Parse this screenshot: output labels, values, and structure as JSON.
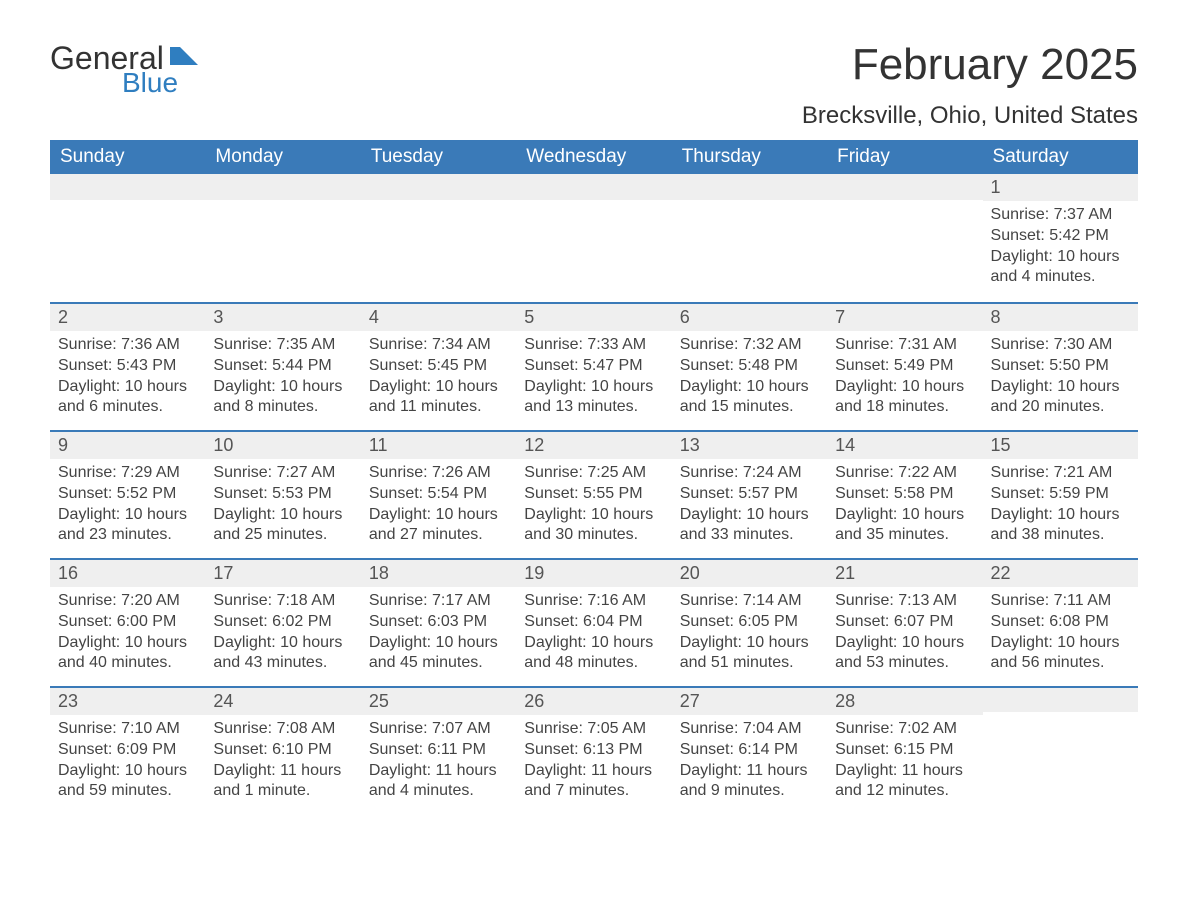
{
  "logo": {
    "text1": "General",
    "text2": "Blue",
    "icon_color": "#2f7ec0"
  },
  "title": "February 2025",
  "location": "Brecksville, Ohio, United States",
  "colors": {
    "header_bg": "#3a7ab8",
    "header_text": "#ffffff",
    "daybar_bg": "#efefef",
    "daybar_border": "#3a7ab8",
    "body_text": "#444444",
    "page_bg": "#ffffff"
  },
  "weekdays": [
    "Sunday",
    "Monday",
    "Tuesday",
    "Wednesday",
    "Thursday",
    "Friday",
    "Saturday"
  ],
  "weeks": [
    [
      null,
      null,
      null,
      null,
      null,
      null,
      {
        "day": "1",
        "sunrise": "Sunrise: 7:37 AM",
        "sunset": "Sunset: 5:42 PM",
        "daylight": "Daylight: 10 hours and 4 minutes."
      }
    ],
    [
      {
        "day": "2",
        "sunrise": "Sunrise: 7:36 AM",
        "sunset": "Sunset: 5:43 PM",
        "daylight": "Daylight: 10 hours and 6 minutes."
      },
      {
        "day": "3",
        "sunrise": "Sunrise: 7:35 AM",
        "sunset": "Sunset: 5:44 PM",
        "daylight": "Daylight: 10 hours and 8 minutes."
      },
      {
        "day": "4",
        "sunrise": "Sunrise: 7:34 AM",
        "sunset": "Sunset: 5:45 PM",
        "daylight": "Daylight: 10 hours and 11 minutes."
      },
      {
        "day": "5",
        "sunrise": "Sunrise: 7:33 AM",
        "sunset": "Sunset: 5:47 PM",
        "daylight": "Daylight: 10 hours and 13 minutes."
      },
      {
        "day": "6",
        "sunrise": "Sunrise: 7:32 AM",
        "sunset": "Sunset: 5:48 PM",
        "daylight": "Daylight: 10 hours and 15 minutes."
      },
      {
        "day": "7",
        "sunrise": "Sunrise: 7:31 AM",
        "sunset": "Sunset: 5:49 PM",
        "daylight": "Daylight: 10 hours and 18 minutes."
      },
      {
        "day": "8",
        "sunrise": "Sunrise: 7:30 AM",
        "sunset": "Sunset: 5:50 PM",
        "daylight": "Daylight: 10 hours and 20 minutes."
      }
    ],
    [
      {
        "day": "9",
        "sunrise": "Sunrise: 7:29 AM",
        "sunset": "Sunset: 5:52 PM",
        "daylight": "Daylight: 10 hours and 23 minutes."
      },
      {
        "day": "10",
        "sunrise": "Sunrise: 7:27 AM",
        "sunset": "Sunset: 5:53 PM",
        "daylight": "Daylight: 10 hours and 25 minutes."
      },
      {
        "day": "11",
        "sunrise": "Sunrise: 7:26 AM",
        "sunset": "Sunset: 5:54 PM",
        "daylight": "Daylight: 10 hours and 27 minutes."
      },
      {
        "day": "12",
        "sunrise": "Sunrise: 7:25 AM",
        "sunset": "Sunset: 5:55 PM",
        "daylight": "Daylight: 10 hours and 30 minutes."
      },
      {
        "day": "13",
        "sunrise": "Sunrise: 7:24 AM",
        "sunset": "Sunset: 5:57 PM",
        "daylight": "Daylight: 10 hours and 33 minutes."
      },
      {
        "day": "14",
        "sunrise": "Sunrise: 7:22 AM",
        "sunset": "Sunset: 5:58 PM",
        "daylight": "Daylight: 10 hours and 35 minutes."
      },
      {
        "day": "15",
        "sunrise": "Sunrise: 7:21 AM",
        "sunset": "Sunset: 5:59 PM",
        "daylight": "Daylight: 10 hours and 38 minutes."
      }
    ],
    [
      {
        "day": "16",
        "sunrise": "Sunrise: 7:20 AM",
        "sunset": "Sunset: 6:00 PM",
        "daylight": "Daylight: 10 hours and 40 minutes."
      },
      {
        "day": "17",
        "sunrise": "Sunrise: 7:18 AM",
        "sunset": "Sunset: 6:02 PM",
        "daylight": "Daylight: 10 hours and 43 minutes."
      },
      {
        "day": "18",
        "sunrise": "Sunrise: 7:17 AM",
        "sunset": "Sunset: 6:03 PM",
        "daylight": "Daylight: 10 hours and 45 minutes."
      },
      {
        "day": "19",
        "sunrise": "Sunrise: 7:16 AM",
        "sunset": "Sunset: 6:04 PM",
        "daylight": "Daylight: 10 hours and 48 minutes."
      },
      {
        "day": "20",
        "sunrise": "Sunrise: 7:14 AM",
        "sunset": "Sunset: 6:05 PM",
        "daylight": "Daylight: 10 hours and 51 minutes."
      },
      {
        "day": "21",
        "sunrise": "Sunrise: 7:13 AM",
        "sunset": "Sunset: 6:07 PM",
        "daylight": "Daylight: 10 hours and 53 minutes."
      },
      {
        "day": "22",
        "sunrise": "Sunrise: 7:11 AM",
        "sunset": "Sunset: 6:08 PM",
        "daylight": "Daylight: 10 hours and 56 minutes."
      }
    ],
    [
      {
        "day": "23",
        "sunrise": "Sunrise: 7:10 AM",
        "sunset": "Sunset: 6:09 PM",
        "daylight": "Daylight: 10 hours and 59 minutes."
      },
      {
        "day": "24",
        "sunrise": "Sunrise: 7:08 AM",
        "sunset": "Sunset: 6:10 PM",
        "daylight": "Daylight: 11 hours and 1 minute."
      },
      {
        "day": "25",
        "sunrise": "Sunrise: 7:07 AM",
        "sunset": "Sunset: 6:11 PM",
        "daylight": "Daylight: 11 hours and 4 minutes."
      },
      {
        "day": "26",
        "sunrise": "Sunrise: 7:05 AM",
        "sunset": "Sunset: 6:13 PM",
        "daylight": "Daylight: 11 hours and 7 minutes."
      },
      {
        "day": "27",
        "sunrise": "Sunrise: 7:04 AM",
        "sunset": "Sunset: 6:14 PM",
        "daylight": "Daylight: 11 hours and 9 minutes."
      },
      {
        "day": "28",
        "sunrise": "Sunrise: 7:02 AM",
        "sunset": "Sunset: 6:15 PM",
        "daylight": "Daylight: 11 hours and 12 minutes."
      },
      null
    ]
  ]
}
